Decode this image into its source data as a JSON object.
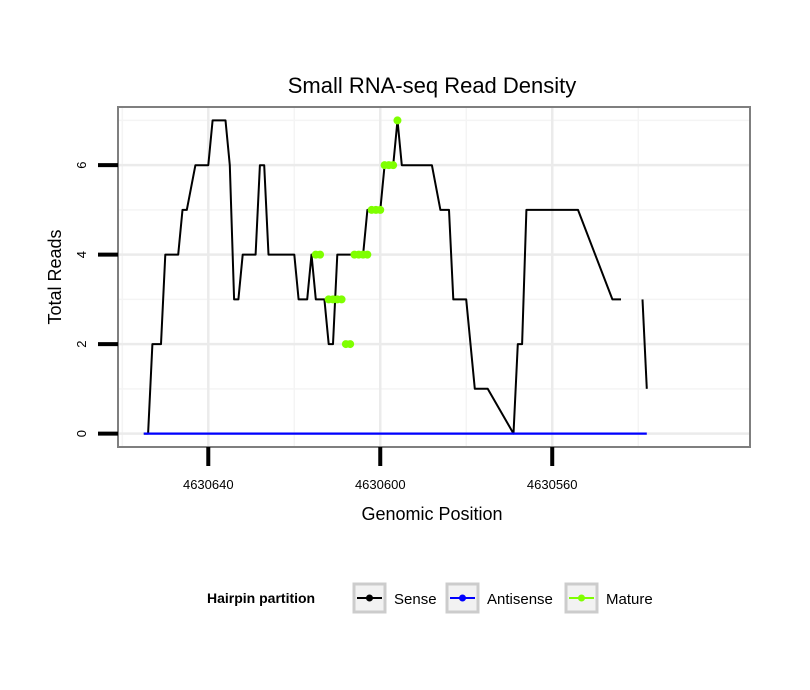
{
  "chart_data": {
    "type": "line",
    "title": "Small RNA-seq Read Density",
    "xlabel": "Genomic Position",
    "ylabel": "Total Reads",
    "x_reversed": true,
    "xlim": [
      4630661,
      4630514
    ],
    "ylim": [
      -0.3,
      7.3
    ],
    "x_ticks": [
      4630640,
      4630600,
      4630560
    ],
    "y_ticks": [
      0,
      2,
      4,
      6
    ],
    "grid": true,
    "legend": {
      "title": "Hairpin partition",
      "position": "bottom",
      "entries": [
        {
          "label": "Sense",
          "color": "#000000"
        },
        {
          "label": "Antisense",
          "color": "#0000ff"
        },
        {
          "label": "Mature",
          "color": "#7fff00"
        }
      ]
    },
    "series": [
      {
        "name": "Sense",
        "color": "#000000",
        "x": [
          4630655,
          4630654,
          4630653,
          4630651,
          4630650,
          4630647,
          4630646,
          4630645,
          4630643,
          4630642,
          4630640,
          4630639,
          4630636,
          4630635,
          4630634,
          4630633,
          4630632,
          4630629,
          4630628,
          4630627,
          4630626,
          4630625,
          4630624,
          4630620,
          4630619,
          4630617,
          4630616,
          4630615,
          4630613,
          4630612,
          4630611,
          4630610,
          4630609,
          4630608,
          4630604,
          4630603,
          4630601,
          4630600,
          4630599,
          4630597,
          4630596,
          4630595,
          4630593,
          4630592,
          4630591,
          4630588,
          4630586,
          4630584,
          4630583,
          4630581,
          4630580,
          4630578,
          4630575,
          4630569,
          4630568,
          4630567,
          4630566,
          4630565,
          4630555,
          4630554,
          4630546,
          4630545,
          4630544
        ],
        "y": [
          0,
          0,
          2,
          2,
          4,
          4,
          5,
          5,
          6,
          6,
          6,
          7,
          7,
          6,
          3,
          3,
          4,
          4,
          6,
          6,
          4,
          4,
          4,
          4,
          3,
          3,
          4,
          3,
          3,
          2,
          2,
          4,
          4,
          4,
          4,
          5,
          5,
          5,
          6,
          6,
          7,
          6,
          6,
          6,
          6,
          6,
          5,
          5,
          3,
          3,
          3,
          1,
          1,
          0,
          2,
          2,
          5,
          5,
          5,
          5,
          3,
          3,
          3
        ]
      },
      {
        "name": "Sense_tail",
        "color": "#000000",
        "x": [
          4630539,
          4630538
        ],
        "y": [
          3,
          1
        ]
      },
      {
        "name": "Antisense",
        "color": "#0000ff",
        "x": [
          4630655,
          4630538
        ],
        "y": [
          0,
          0
        ]
      },
      {
        "name": "Mature",
        "color": "#7fff00",
        "x": [
          4630615,
          4630614,
          4630612,
          4630611,
          4630610,
          4630609,
          4630608,
          4630607,
          4630606,
          4630605,
          4630604,
          4630603,
          4630602,
          4630601,
          4630600,
          4630599,
          4630598,
          4630597,
          4630596
        ],
        "y": [
          4,
          4,
          3,
          3,
          3,
          3,
          2,
          2,
          4,
          4,
          4,
          4,
          5,
          5,
          5,
          6,
          6,
          6,
          7
        ]
      }
    ]
  }
}
